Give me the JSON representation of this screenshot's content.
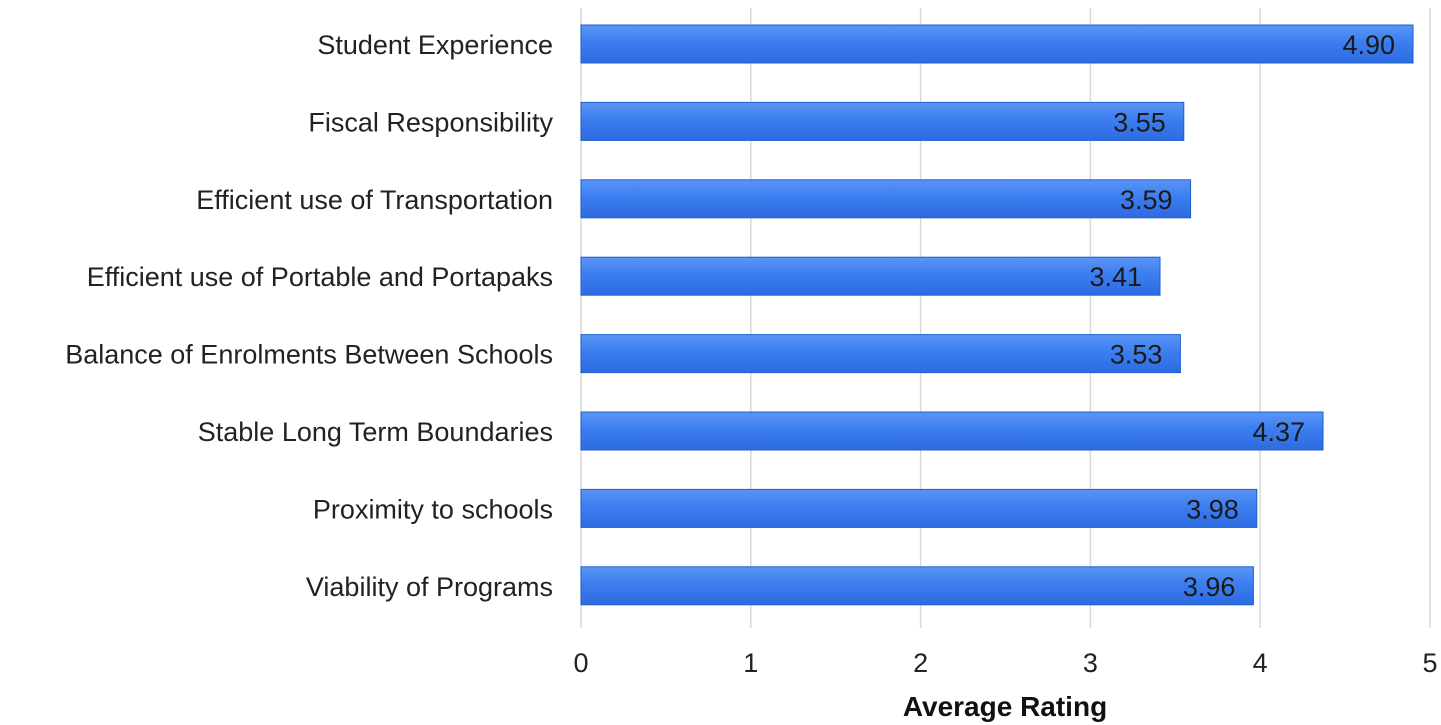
{
  "chart_data": {
    "type": "bar",
    "orientation": "horizontal",
    "categories": [
      "Student Experience",
      "Fiscal Responsibility",
      "Efficient use of Transportation",
      "Efficient use of Portable and Portapaks",
      "Balance of Enrolments Between Schools",
      "Stable Long Term Boundaries",
      "Proximity to schools",
      "Viability of Programs"
    ],
    "values": [
      4.9,
      3.55,
      3.59,
      3.41,
      3.53,
      4.37,
      3.98,
      3.96
    ],
    "value_labels": [
      "4.90",
      "3.55",
      "3.59",
      "3.41",
      "3.53",
      "4.37",
      "3.98",
      "3.96"
    ],
    "title": "",
    "xlabel": "Average Rating",
    "ylabel": "",
    "xlim": [
      0,
      5
    ],
    "x_ticks": [
      "0",
      "1",
      "2",
      "3",
      "4",
      "5"
    ],
    "grid": "vertical",
    "bar_color": "#3c7ef0",
    "bar_edge_color": "#1f5fd1"
  }
}
